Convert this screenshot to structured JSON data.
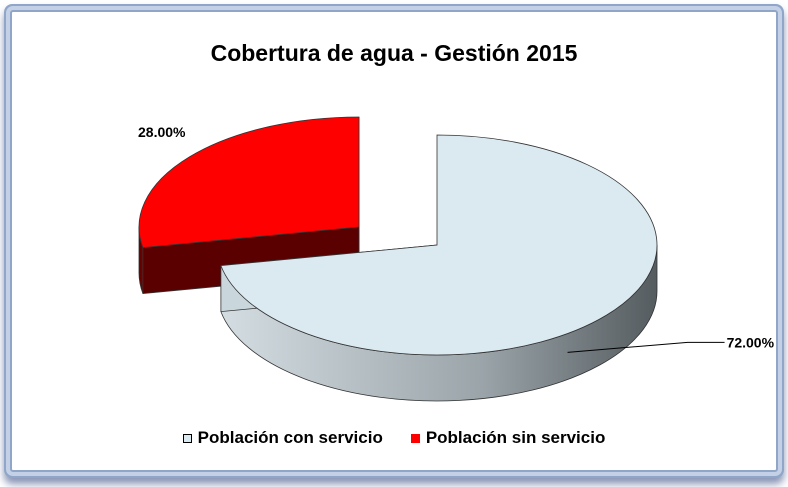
{
  "chart_data": {
    "type": "pie",
    "title": "Cobertura de agua - Gestión 2015",
    "categories": [
      "Población con servicio",
      "Población sin servicio"
    ],
    "values": [
      72.0,
      28.0
    ],
    "data_labels": [
      "72.00%",
      "28.00%"
    ],
    "colors": [
      "#dbe9f1",
      "#ff0000"
    ],
    "side_colors": [
      "#8f979c",
      "#6b0000"
    ],
    "exploded": [
      false,
      true
    ],
    "three_d": true,
    "legend": "bottom"
  }
}
